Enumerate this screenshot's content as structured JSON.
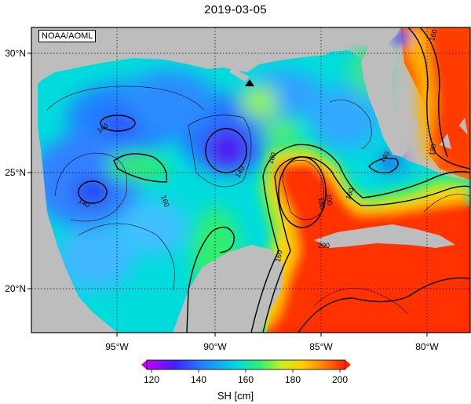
{
  "title": "2019-03-05",
  "credit": "NOAA/AOML",
  "map": {
    "lon_labels": [
      "95°W",
      "90°W",
      "85°W",
      "80°W"
    ],
    "lat_labels": [
      "30°N",
      "25°N",
      "20°N"
    ],
    "contour_labels": [
      "140",
      "140",
      "140",
      "140",
      "160",
      "160",
      "160",
      "160",
      "180",
      "180",
      "180",
      "200",
      "200"
    ],
    "marker": "station-triangle"
  },
  "colorbar": {
    "label": "SH [cm]",
    "ticks": [
      "120",
      "140",
      "160",
      "180",
      "200"
    ],
    "range": [
      120,
      200
    ],
    "colors": [
      "#c000ff",
      "#4020ff",
      "#2080ff",
      "#00d0e0",
      "#30f070",
      "#c0f020",
      "#ffd000",
      "#ff8000",
      "#ff2000"
    ]
  },
  "colors": {
    "land": "#c0c0c0",
    "frame": "#000000"
  }
}
